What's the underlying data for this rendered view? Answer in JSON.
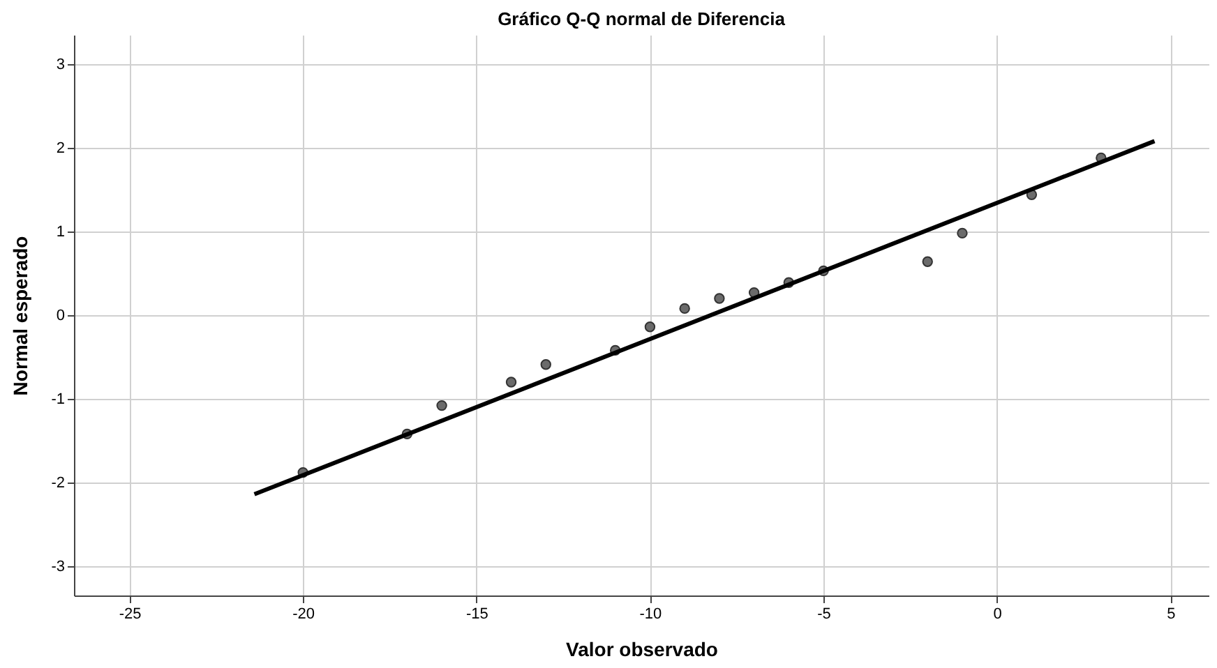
{
  "chart_data": {
    "type": "scatter",
    "title": "Gráfico Q-Q normal de Diferencia",
    "xlabel": "Valor observado",
    "ylabel": "Normal esperado",
    "x": [
      -20,
      -17,
      -16,
      -14,
      -13,
      -11,
      -10,
      -9,
      -8,
      -7,
      -6,
      -5,
      -2,
      -1,
      1,
      3
    ],
    "series": [
      {
        "color": "#6b6b6b",
        "marker": "circle",
        "values": [
          -1.88,
          -1.42,
          -1.08,
          -0.8,
          -0.59,
          -0.42,
          -0.14,
          0.08,
          0.2,
          0.27,
          0.39,
          0.53,
          0.64,
          0.98,
          1.44,
          1.88
        ]
      },
      {
        "type": "line",
        "color": "#000000",
        "x": [
          -21.4,
          4.54
        ],
        "values": [
          -2.14,
          2.08
        ]
      }
    ],
    "xlim": [
      -26.6,
      6.1
    ],
    "xticks": [
      -25,
      -20,
      -15,
      -10,
      -5,
      0,
      5
    ],
    "ylim": [
      -3.35,
      3.35
    ],
    "yticks": [
      -3,
      -2,
      -1,
      0,
      1,
      2,
      3
    ],
    "grid": true
  }
}
